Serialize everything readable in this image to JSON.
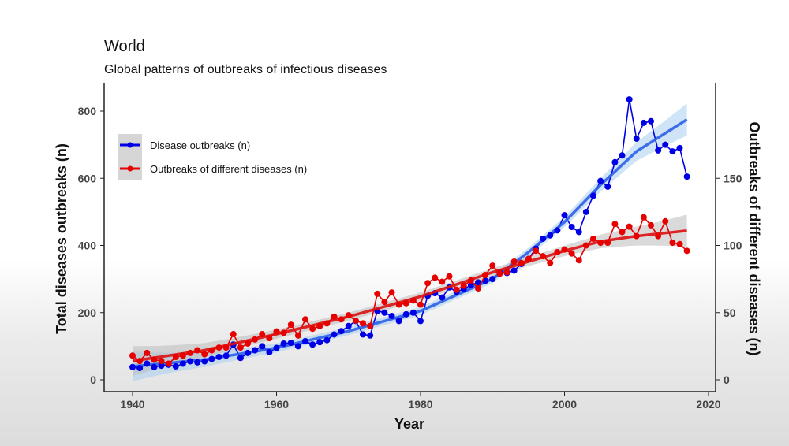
{
  "chart_data": {
    "type": "line",
    "title": "World",
    "subtitle": "Global patterns of outbreaks of infectious diseases",
    "xlabel": "Year",
    "ylabel_left": "Total diseases outbreaks (n)",
    "ylabel_right": "Outbreaks of different diseases (n)",
    "xlim": [
      1936,
      2021
    ],
    "ylim_left": [
      -30,
      880
    ],
    "ylim_right": [
      -7.5,
      220
    ],
    "x_ticks": [
      "1940",
      "1960",
      "1980",
      "2000",
      "2020"
    ],
    "y_left_ticks": [
      "0",
      "200",
      "400",
      "600",
      "800"
    ],
    "y_right_ticks": [
      "0",
      "50",
      "100",
      "150"
    ],
    "grid": false,
    "legend_position": "top-left",
    "x": [
      1940,
      1941,
      1942,
      1943,
      1944,
      1945,
      1946,
      1947,
      1948,
      1949,
      1950,
      1951,
      1952,
      1953,
      1954,
      1955,
      1956,
      1957,
      1958,
      1959,
      1960,
      1961,
      1962,
      1963,
      1964,
      1965,
      1966,
      1967,
      1968,
      1969,
      1970,
      1971,
      1972,
      1973,
      1974,
      1975,
      1976,
      1977,
      1978,
      1979,
      1980,
      1981,
      1982,
      1983,
      1984,
      1985,
      1986,
      1987,
      1988,
      1989,
      1990,
      1991,
      1992,
      1993,
      1994,
      1995,
      1996,
      1997,
      1998,
      1999,
      2000,
      2001,
      2002,
      2003,
      2004,
      2005,
      2006,
      2007,
      2008,
      2009,
      2010,
      2011,
      2012,
      2013,
      2014,
      2015,
      2016,
      2017
    ],
    "series": [
      {
        "name": "Disease outbreaks (n)",
        "axis": "left",
        "color": "#0000e6",
        "trend_color": "#2b5fe8",
        "values": [
          38,
          35,
          48,
          38,
          42,
          45,
          40,
          48,
          55,
          52,
          55,
          62,
          68,
          72,
          105,
          65,
          80,
          88,
          100,
          82,
          95,
          108,
          110,
          100,
          115,
          105,
          112,
          118,
          135,
          145,
          160,
          175,
          135,
          132,
          205,
          200,
          190,
          175,
          195,
          200,
          175,
          250,
          258,
          245,
          275,
          262,
          270,
          282,
          290,
          295,
          300,
          320,
          318,
          325,
          345,
          360,
          390,
          420,
          430,
          445,
          490,
          455,
          440,
          500,
          548,
          592,
          575,
          648,
          668,
          835,
          718,
          765,
          770,
          683,
          700,
          680,
          690,
          605
        ],
        "trend": {
          "x": [
            1940,
            1950,
            1960,
            1970,
            1980,
            1990,
            1995,
            2000,
            2005,
            2010,
            2017
          ],
          "y": [
            40,
            60,
            95,
            145,
            205,
            300,
            380,
            470,
            580,
            680,
            775
          ]
        }
      },
      {
        "name": "Outbreaks of different diseases (n)",
        "axis": "right",
        "color": "#e60000",
        "trend_color": "#dd1111",
        "values": [
          18,
          14,
          20,
          15,
          14,
          12,
          17,
          18,
          20,
          22,
          19,
          22,
          24,
          24,
          34,
          24,
          27,
          30,
          34,
          31,
          36,
          35,
          41,
          33,
          45,
          38,
          40,
          42,
          47,
          45,
          48,
          44,
          42,
          40,
          64,
          58,
          65,
          56,
          57,
          59,
          56,
          72,
          76,
          73,
          77,
          67,
          70,
          74,
          68,
          78,
          85,
          79,
          80,
          88,
          87,
          90,
          96,
          92,
          87,
          95,
          97,
          94,
          89,
          100,
          105,
          102,
          102,
          116,
          110,
          114,
          107,
          121,
          115,
          107,
          118,
          102,
          101,
          96
        ],
        "trend": {
          "x": [
            1940,
            1950,
            1960,
            1970,
            1980,
            1990,
            2000,
            2005,
            2010,
            2017
          ],
          "y": [
            14,
            22,
            34,
            47,
            62,
            80,
            96,
            103,
            107,
            111
          ]
        }
      }
    ]
  }
}
